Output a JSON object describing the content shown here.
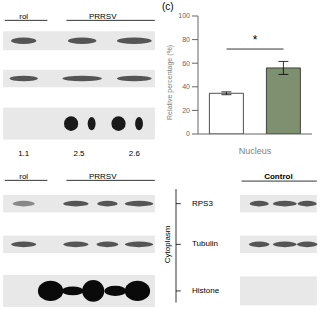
{
  "chart_data": {
    "type": "bar",
    "categories": [
      null,
      null
    ],
    "values": [
      34.5,
      56.0
    ],
    "errors": [
      1.2,
      5.5
    ],
    "colors": [
      "#ffffff",
      "#7f9070"
    ],
    "xlabel": "Nucleus",
    "ylabel": "Relative percentage (%)",
    "ylim": [
      0,
      100
    ],
    "yticks": [
      0,
      20,
      40,
      60,
      80,
      100
    ],
    "annotations": [
      {
        "text": "(c)"
      },
      {
        "text": "*",
        "y": 72
      },
      {
        "text": "rol"
      },
      {
        "text": "PRRSV"
      },
      {
        "text": "1.1"
      },
      {
        "text": "2.5"
      },
      {
        "text": "2.6"
      },
      {
        "text": "rol"
      },
      {
        "text": "PRRSV"
      },
      {
        "text": "Cytoplasm"
      },
      {
        "text": "RPS3"
      },
      {
        "text": "Tubulin"
      },
      {
        "text": "Histone"
      },
      {
        "text": "Control"
      }
    ]
  }
}
